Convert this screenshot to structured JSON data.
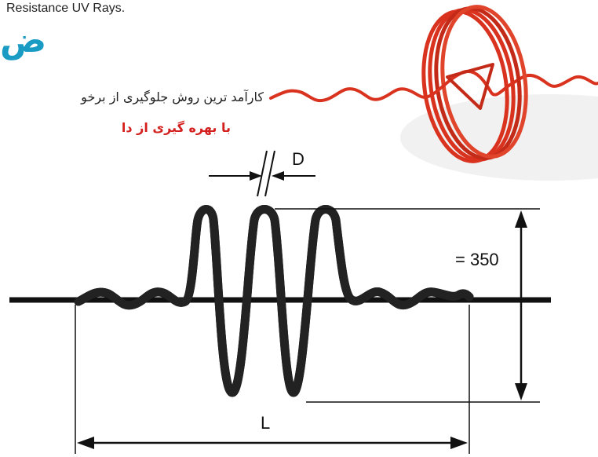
{
  "header": {
    "uv_text": "Resistance UV Rays.",
    "title_letter": "ض",
    "line1": "کارآمد ترین روش جلوگیری از برخو",
    "line2": "با بهره گیری از دا"
  },
  "diagram": {
    "label_d": "D",
    "label_height": "= 350",
    "label_l": "L",
    "colors": {
      "coil": "#d9331f",
      "line": "#111111",
      "wire_fill": "#ffffff"
    }
  }
}
